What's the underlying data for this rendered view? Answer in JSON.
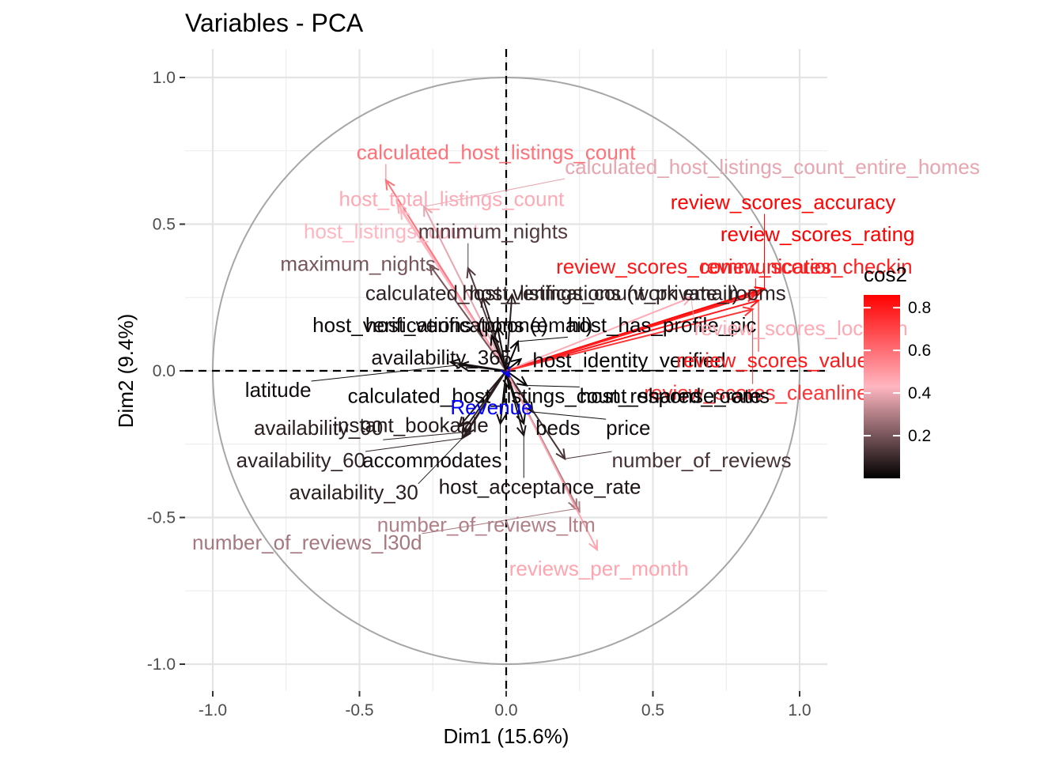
{
  "chart_data": {
    "type": "scatter",
    "subtype": "pca-variable-correlation-circle",
    "title": "Variables - PCA",
    "xlabel": "Dim1 (15.6%)",
    "ylabel": "Dim2 (9.4%)",
    "xlim": [
      -1.1,
      1.1
    ],
    "ylim": [
      -1.1,
      1.1
    ],
    "x_ticks": [
      {
        "value": -1.0,
        "label": "-1.0"
      },
      {
        "value": -0.5,
        "label": "-0.5"
      },
      {
        "value": 0.0,
        "label": "0.0"
      },
      {
        "value": 0.5,
        "label": "0.5"
      },
      {
        "value": 1.0,
        "label": "1.0"
      }
    ],
    "y_ticks": [
      {
        "value": 1.0,
        "label": "1.0"
      },
      {
        "value": 0.5,
        "label": "0.5"
      },
      {
        "value": 0.0,
        "label": "0.0"
      },
      {
        "value": -0.5,
        "label": "-0.5"
      },
      {
        "value": -1.0,
        "label": "-1.0"
      }
    ],
    "grid": true,
    "unit_circle": true,
    "legend": {
      "title": "cos2",
      "placement": "right",
      "min": 0.0,
      "max": 0.86,
      "ticks": [
        {
          "value": 0.2,
          "label": "0.2"
        },
        {
          "value": 0.4,
          "label": "0.4"
        },
        {
          "value": 0.6,
          "label": "0.6"
        },
        {
          "value": 0.8,
          "label": "0.8"
        }
      ],
      "colors": [
        "#000000",
        "#ffb6c1",
        "#ff0000"
      ]
    },
    "supplementary": {
      "name": "Revenue",
      "x": 0.01,
      "y": -0.02,
      "label_x": -0.05,
      "label_y": -0.13,
      "color": "#0000ff"
    },
    "variables": [
      {
        "name": "calculated_host_listings_count",
        "x": -0.41,
        "y": 0.65,
        "cos2": 0.59,
        "label_x": -0.51,
        "label_y": 0.74
      },
      {
        "name": "calculated_host_listings_count_entire_homes",
        "x": -0.28,
        "y": 0.56,
        "cos2": 0.39,
        "label_x": 0.2,
        "label_y": 0.69
      },
      {
        "name": "host_total_listings_count",
        "x": -0.37,
        "y": 0.57,
        "cos2": 0.46,
        "label_x": -0.57,
        "label_y": 0.58
      },
      {
        "name": "host_listings_count",
        "x": -0.36,
        "y": 0.55,
        "cos2": 0.43,
        "label_x": -0.69,
        "label_y": 0.47
      },
      {
        "name": "minimum_nights",
        "x": -0.13,
        "y": 0.35,
        "cos2": 0.14,
        "label_x": -0.3,
        "label_y": 0.47
      },
      {
        "name": "maximum_nights",
        "x": -0.26,
        "y": 0.36,
        "cos2": 0.2,
        "label_x": -0.77,
        "label_y": 0.36
      },
      {
        "name": "calculated_host_listings_count_private_rooms",
        "x": -0.08,
        "y": 0.25,
        "cos2": 0.08,
        "label_x": -0.48,
        "label_y": 0.26
      },
      {
        "name": "host_verifications (work email)",
        "x": 0.02,
        "y": 0.26,
        "cos2": 0.07,
        "label_x": -0.15,
        "label_y": 0.26
      },
      {
        "name": "host_verifications (phone)",
        "x": -0.05,
        "y": 0.12,
        "cos2": 0.02,
        "label_x": -0.66,
        "label_y": 0.15
      },
      {
        "name": "host_verifications (email)",
        "x": -0.03,
        "y": 0.15,
        "cos2": 0.03,
        "label_x": -0.48,
        "label_y": 0.15
      },
      {
        "name": "host_has_profile_pic",
        "x": 0.04,
        "y": 0.1,
        "cos2": 0.01,
        "label_x": 0.21,
        "label_y": 0.15
      },
      {
        "name": "host_identity_verified",
        "x": 0.05,
        "y": 0.04,
        "cos2": 0.01,
        "label_x": 0.09,
        "label_y": 0.03
      },
      {
        "name": "availability_365",
        "x": -0.19,
        "y": 0.03,
        "cos2": 0.04,
        "label_x": -0.46,
        "label_y": 0.04
      },
      {
        "name": "review_scores_accuracy",
        "x": 0.88,
        "y": 0.28,
        "cos2": 0.85,
        "label_x": 0.56,
        "label_y": 0.57
      },
      {
        "name": "review_scores_rating",
        "x": 0.88,
        "y": 0.28,
        "cos2": 0.86,
        "label_x": 0.73,
        "label_y": 0.46
      },
      {
        "name": "review_scores_communication",
        "x": 0.86,
        "y": 0.27,
        "cos2": 0.81,
        "label_x": 0.17,
        "label_y": 0.35
      },
      {
        "name": "review_scores_checkin",
        "x": 0.85,
        "y": 0.26,
        "cos2": 0.79,
        "label_x": 0.66,
        "label_y": 0.35
      },
      {
        "name": "review_scores_location",
        "x": 0.63,
        "y": 0.25,
        "cos2": 0.46,
        "label_x": 0.64,
        "label_y": 0.14
      },
      {
        "name": "review_scores_value",
        "x": 0.86,
        "y": 0.24,
        "cos2": 0.8,
        "label_x": 0.58,
        "label_y": 0.03
      },
      {
        "name": "review_scores_cleanliness",
        "x": 0.84,
        "y": 0.21,
        "cos2": 0.74,
        "label_x": 0.47,
        "label_y": -0.08
      },
      {
        "name": "latitude",
        "x": -0.16,
        "y": 0.02,
        "cos2": 0.03,
        "label_x": -0.89,
        "label_y": -0.07
      },
      {
        "name": "calculated_host_listings_count_shared_rooms",
        "x": 0.01,
        "y": -0.06,
        "cos2": 0.01,
        "label_x": -0.54,
        "label_y": -0.09
      },
      {
        "name": "host_response_rate",
        "x": 0.07,
        "y": -0.05,
        "cos2": 0.01,
        "label_x": 0.25,
        "label_y": -0.09
      },
      {
        "name": "availability_90",
        "x": -0.15,
        "y": -0.21,
        "cos2": 0.07,
        "label_x": -0.86,
        "label_y": -0.2
      },
      {
        "name": "instant_bookable",
        "x": -0.16,
        "y": -0.19,
        "cos2": 0.06,
        "label_x": -0.59,
        "label_y": -0.19
      },
      {
        "name": "availability_60",
        "x": -0.15,
        "y": -0.23,
        "cos2": 0.08,
        "label_x": -0.92,
        "label_y": -0.31
      },
      {
        "name": "accommodates",
        "x": -0.02,
        "y": -0.18,
        "cos2": 0.03,
        "label_x": -0.49,
        "label_y": -0.31
      },
      {
        "name": "availability_30",
        "x": -0.14,
        "y": -0.22,
        "cos2": 0.07,
        "label_x": -0.74,
        "label_y": -0.42
      },
      {
        "name": "beds",
        "x": 0.06,
        "y": -0.18,
        "cos2": 0.03,
        "label_x": 0.1,
        "label_y": -0.2
      },
      {
        "name": "price",
        "x": 0.09,
        "y": -0.14,
        "cos2": 0.03,
        "label_x": 0.34,
        "label_y": -0.2
      },
      {
        "name": "number_of_reviews",
        "x": 0.2,
        "y": -0.3,
        "cos2": 0.12,
        "label_x": 0.36,
        "label_y": -0.31
      },
      {
        "name": "host_acceptance_rate",
        "x": 0.06,
        "y": -0.22,
        "cos2": 0.05,
        "label_x": -0.23,
        "label_y": -0.4
      },
      {
        "name": "number_of_reviews_ltm",
        "x": 0.25,
        "y": -0.48,
        "cos2": 0.3,
        "label_x": -0.44,
        "label_y": -0.53
      },
      {
        "name": "number_of_reviews_l30d",
        "x": 0.24,
        "y": -0.47,
        "cos2": 0.28,
        "label_x": -1.07,
        "label_y": -0.59
      },
      {
        "name": "reviews_per_month",
        "x": 0.31,
        "y": -0.61,
        "cos2": 0.47,
        "label_x": 0.01,
        "label_y": -0.68
      }
    ]
  }
}
